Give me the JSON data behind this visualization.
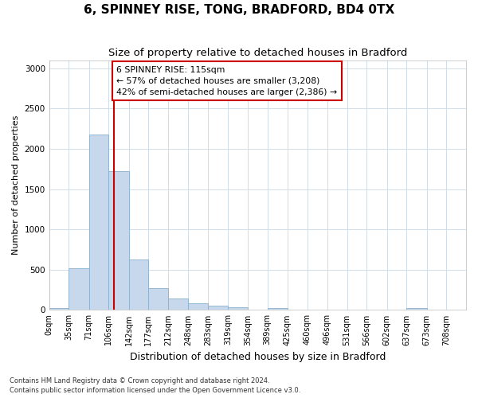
{
  "title1": "6, SPINNEY RISE, TONG, BRADFORD, BD4 0TX",
  "title2": "Size of property relative to detached houses in Bradford",
  "xlabel": "Distribution of detached houses by size in Bradford",
  "ylabel": "Number of detached properties",
  "bin_labels": [
    "0sqm",
    "35sqm",
    "71sqm",
    "106sqm",
    "142sqm",
    "177sqm",
    "212sqm",
    "248sqm",
    "283sqm",
    "319sqm",
    "354sqm",
    "389sqm",
    "425sqm",
    "460sqm",
    "496sqm",
    "531sqm",
    "566sqm",
    "602sqm",
    "637sqm",
    "673sqm",
    "708sqm"
  ],
  "bin_edges": [
    0,
    35,
    71,
    106,
    142,
    177,
    212,
    248,
    283,
    319,
    354,
    389,
    425,
    460,
    496,
    531,
    566,
    602,
    637,
    673,
    708,
    743
  ],
  "bar_heights": [
    20,
    520,
    2180,
    1720,
    630,
    270,
    140,
    80,
    50,
    35,
    5,
    20,
    5,
    5,
    5,
    0,
    0,
    0,
    20,
    0,
    0
  ],
  "bar_color": "#c8d8ec",
  "bar_edge_color": "#8ab0cc",
  "property_size": 115,
  "red_line_color": "#cc0000",
  "annotation_line1": "6 SPINNEY RISE: 115sqm",
  "annotation_line2": "← 57% of detached houses are smaller (3,208)",
  "annotation_line3": "42% of semi-detached houses are larger (2,386) →",
  "annotation_box_color": "#ffffff",
  "annotation_box_edge": "#cc0000",
  "ylim": [
    0,
    3100
  ],
  "yticks": [
    0,
    500,
    1000,
    1500,
    2000,
    2500,
    3000
  ],
  "footer1": "Contains HM Land Registry data © Crown copyright and database right 2024.",
  "footer2": "Contains public sector information licensed under the Open Government Licence v3.0.",
  "bg_color": "#ffffff",
  "grid_color": "#d0dde8",
  "title1_fontsize": 11,
  "title2_fontsize": 9.5,
  "tick_fontsize": 7,
  "ylabel_fontsize": 8,
  "xlabel_fontsize": 9
}
